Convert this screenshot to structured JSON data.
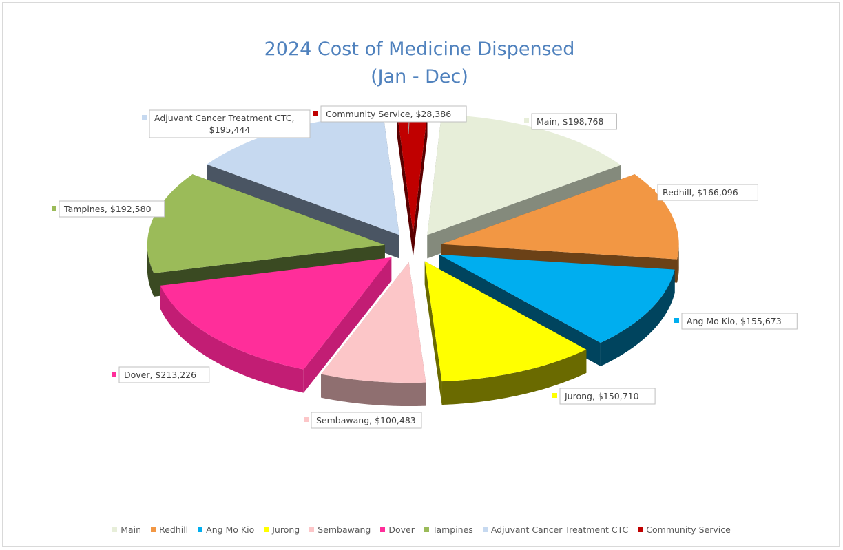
{
  "chart_data": {
    "type": "pie",
    "title": "2024 Cost of Medicine Dispensed",
    "subtitle": "(Jan - Dec)",
    "legend_position": "bottom",
    "currency_prefix": "$",
    "slices": [
      {
        "name": "Main",
        "value": 198768,
        "label": "Main,  $198,768",
        "color": "#e7eed9",
        "side_color": "#848a7c"
      },
      {
        "name": "Redhill",
        "value": 166096,
        "label": "Redhill,  $166,096",
        "color": "#f29744",
        "side_color": "#6b4117"
      },
      {
        "name": "Ang Mo Kio",
        "value": 155673,
        "label": "Ang Mo Kio,  $155,673",
        "color": "#00aeef",
        "side_color": "#00445e"
      },
      {
        "name": "Jurong",
        "value": 150710,
        "label": "Jurong,  $150,710",
        "color": "#ffff00",
        "side_color": "#6a6a00"
      },
      {
        "name": "Sembawang",
        "value": 100483,
        "label": "Sembawang,  $100,483",
        "color": "#fcc6c8",
        "side_color": "#8f6f70"
      },
      {
        "name": "Dover",
        "value": 213226,
        "label": "Dover,  $213,226",
        "color": "#ff2e9a",
        "side_color": "#c21d74"
      },
      {
        "name": "Tampines",
        "value": 192580,
        "label": "Tampines,  $192,580",
        "color": "#9bbb59",
        "side_color": "#3a4a22"
      },
      {
        "name": "Adjuvant Cancer Treatment CTC",
        "value": 195444,
        "label": "Adjuvant Cancer Treatment CTC,\n$195,444",
        "color": "#c6d9f0",
        "side_color": "#4a5563"
      },
      {
        "name": "Community Service",
        "value": 28386,
        "label": "Community Service,  $28,386",
        "color": "#c00000",
        "side_color": "#5a0000"
      }
    ]
  }
}
